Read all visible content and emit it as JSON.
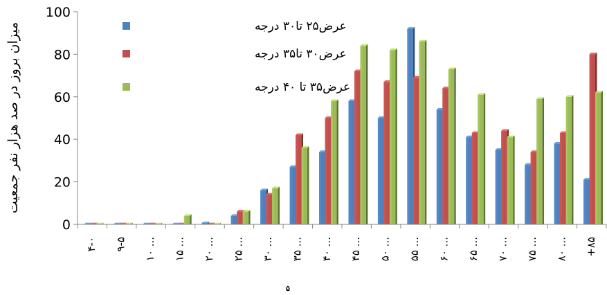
{
  "chart_data": {
    "type": "bar",
    "title": "",
    "xlabel": "",
    "ylabel": "میزان بروز در صد هزار نفر جمعیت",
    "ylim": [
      0,
      100
    ],
    "yticks": [
      0,
      20,
      40,
      60,
      80,
      100
    ],
    "grid": false,
    "legend_position": "top-left",
    "categories": [
      "۴-۰",
      "۹-۵",
      "۱۰ ...",
      "۱۵ ...",
      "۲۰ ...",
      "۲۵ ...",
      "۳۰ ...",
      "۳۵ ...",
      "۴۰ ...",
      "۴۵ ...",
      "۵۰ ...",
      "۵۵ ...",
      "۶۰ ...",
      "۶۵ ...",
      "۷۰ ...",
      "۷۵ ...",
      "۸۰ ...",
      "+۸۵"
    ],
    "series": [
      {
        "name": "عرض۲۵ تا۳۰ درجه",
        "color": "#4f81bd",
        "values": [
          0,
          0,
          0,
          0,
          0.5,
          4,
          16,
          27,
          34,
          58,
          50,
          92,
          54,
          41,
          35,
          28,
          38,
          21
        ]
      },
      {
        "name": "عرض۳۰ تا۳۵ درجه",
        "color": "#c0504d",
        "values": [
          0,
          0,
          0,
          0,
          0,
          6,
          14,
          42,
          50,
          72,
          67,
          69,
          64,
          43,
          44,
          34,
          43,
          80
        ]
      },
      {
        "name": "عرض۳۵ تا ۴۰ درجه",
        "color": "#9bbb59",
        "values": [
          0,
          0,
          0,
          4,
          0,
          6,
          17,
          36,
          58,
          84,
          82,
          86,
          73,
          61,
          41,
          59,
          60,
          62
        ]
      }
    ]
  },
  "footer_label": "۵"
}
